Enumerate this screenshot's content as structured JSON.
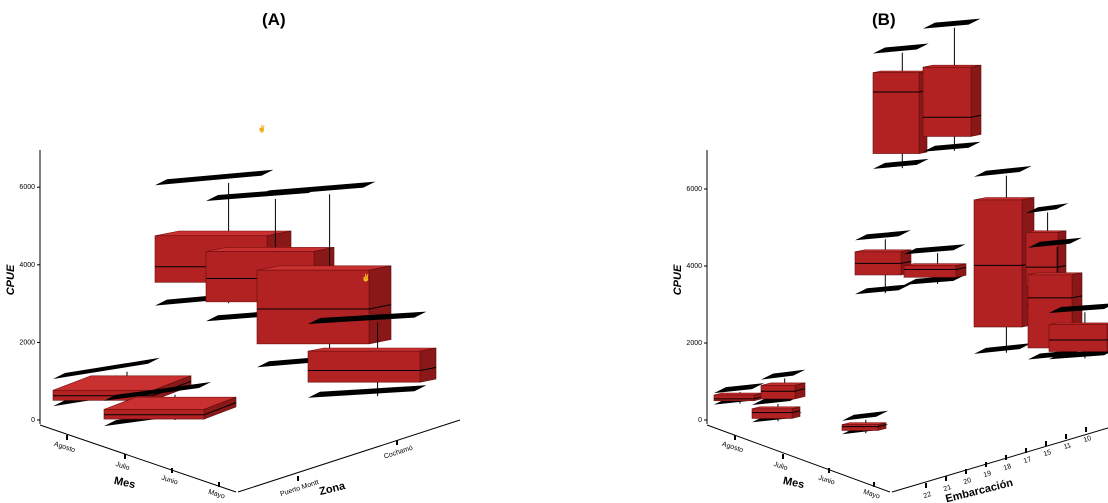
{
  "chart_data": [
    {
      "panel": "(A)",
      "type": "3d-box",
      "ylabel": "CPUE",
      "yticks": [
        0,
        2000,
        4000,
        6000
      ],
      "ylim": [
        0,
        7000
      ],
      "x_axis": {
        "label": "Mes",
        "categories": [
          "Agosto",
          "Julio",
          "Junio",
          "Mayo"
        ]
      },
      "z_axis": {
        "label": "Zona",
        "categories": [
          "Puerto Montt",
          "Cochamó"
        ]
      },
      "boxes": [
        {
          "mes": "Agosto",
          "zona": "Puerto Montt",
          "min": 150,
          "q1": 300,
          "median": 420,
          "q3": 560,
          "max": 850
        },
        {
          "mes": "Mayo",
          "zona": "Puerto Montt",
          "min": 50,
          "q1": 230,
          "median": 340,
          "q3": 480,
          "max": 700
        },
        {
          "mes": "Julio",
          "zona": "Cochamó",
          "min": 3000,
          "q1": 3600,
          "median": 4000,
          "q3": 4800,
          "max": 6100
        },
        {
          "mes": "Junio",
          "zona": "Cochamó",
          "min": 2700,
          "q1": 3200,
          "median": 3800,
          "q3": 4500,
          "max": 5800
        },
        {
          "mes": "Mayo",
          "zona": "Cochamó",
          "min": 1800,
          "q1": 2400,
          "median": 3300,
          "q3": 4300,
          "max": 6200
        },
        {
          "mes": "Mayo",
          "zona": "Cochamó",
          "min": 600,
          "q1": 1000,
          "median": 1300,
          "q3": 1800,
          "max": 2500
        }
      ],
      "outliers": [
        {
          "mes": "Julio",
          "zona": "Cochamó",
          "value": 7900
        },
        {
          "mes": "Mayo",
          "zona": "Cochamó",
          "value": 3500
        }
      ],
      "box_color": "#b22222"
    },
    {
      "panel": "(B)",
      "type": "3d-box",
      "ylabel": "CPUE",
      "yticks": [
        0,
        2000,
        4000,
        6000
      ],
      "ylim": [
        0,
        7000
      ],
      "x_axis": {
        "label": "Mes",
        "categories": [
          "Agosto",
          "Julio",
          "Junio",
          "Mayo"
        ]
      },
      "z_axis": {
        "label": "Embarcación",
        "categories": [
          "22",
          "21",
          "20",
          "19",
          "18",
          "17",
          "15",
          "11",
          "10"
        ]
      },
      "boxes": [
        {
          "mes": "Julio",
          "embarcacion": "21",
          "min": 3300,
          "q1": 3700,
          "median": 5300,
          "q3": 5800,
          "max": 6300
        },
        {
          "mes": "Julio",
          "embarcacion": "20",
          "min": 3900,
          "q1": 4300,
          "median": 4800,
          "q3": 6100,
          "max": 7100
        },
        {
          "mes": "Junio",
          "embarcacion": "19",
          "min": 1300,
          "q1": 2000,
          "median": 3600,
          "q3": 5300,
          "max": 5900
        },
        {
          "mes": "Mayo",
          "embarcacion": "18",
          "min": 2400,
          "q1": 2900,
          "median": 3400,
          "q3": 4300,
          "max": 4800
        },
        {
          "mes": "Mayo",
          "embarcacion": "15",
          "min": 1000,
          "q1": 1300,
          "median": 2600,
          "q3": 3200,
          "max": 3900
        },
        {
          "mes": "Mayo",
          "embarcacion": "10",
          "min": 800,
          "q1": 1000,
          "median": 1300,
          "q3": 1700,
          "max": 2000
        },
        {
          "mes": "Agosto",
          "embarcacion": "22",
          "min": 2800,
          "q1": 3300,
          "median": 3600,
          "q3": 3900,
          "max": 4200
        },
        {
          "mes": "Julio",
          "embarcacion": "22",
          "min": 3300,
          "q1": 3500,
          "median": 3700,
          "q3": 3800,
          "max": 4100
        },
        {
          "mes": "Agosto",
          "embarcacion": "22",
          "min": 400,
          "q1": 500,
          "median": 550,
          "q3": 650,
          "max": 700
        },
        {
          "mes": "Julio",
          "embarcacion": "21",
          "min": 200,
          "q1": 300,
          "median": 450,
          "q3": 550,
          "max": 650
        },
        {
          "mes": "Julio",
          "embarcacion": "20",
          "min": 500,
          "q1": 600,
          "median": 800,
          "q3": 950,
          "max": 1100
        },
        {
          "mes": "Junio",
          "embarcacion": "19",
          "min": 200,
          "q1": 300,
          "median": 400,
          "q3": 450,
          "max": 550
        }
      ],
      "box_color": "#b22222"
    }
  ]
}
